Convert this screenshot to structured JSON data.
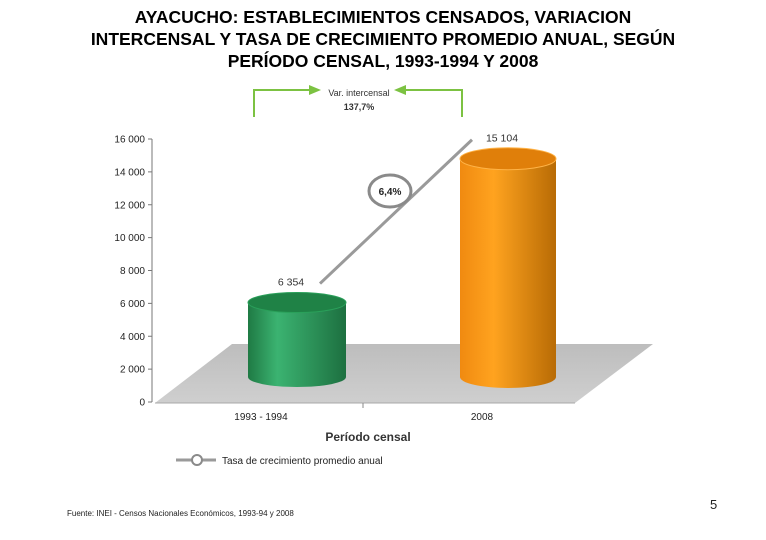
{
  "title": {
    "line1": "AYACUCHO: ESTABLECIMIENTOS CENSADOS, VARIACION",
    "line2": "INTERCENSAL Y TASA DE CRECIMIENTO PROMEDIO ANUAL, SEGÚN",
    "line3": "PERÍODO CENSAL, 1993-1994 Y 2008"
  },
  "chart_data": {
    "type": "bar",
    "categories": [
      "1993 - 1994",
      "2008"
    ],
    "values": [
      6354,
      15104
    ],
    "value_labels": [
      "6 354",
      "15 104"
    ],
    "xlabel": "Período censal",
    "ylabel": "",
    "ylim": [
      0,
      16000
    ],
    "yticks": [
      0,
      2000,
      4000,
      6000,
      8000,
      10000,
      12000,
      14000,
      16000
    ],
    "ytick_labels": [
      "0",
      "2 000",
      "4 000",
      "6 000",
      "8 000",
      "10 000",
      "12 000",
      "14 000",
      "16 000"
    ],
    "bar_colors": [
      "#2e9e5e",
      "#f7931e"
    ],
    "growth_rate_label": "6,4%",
    "variation_label_line1": "Var. intercensal",
    "variation_label_line2": "137,7%",
    "legend_label": "Tasa de crecimiento promedio anual",
    "legend_position": "bottom",
    "grid": false
  },
  "footer": {
    "source": "Fuente: INEI - Censos Nacionales Económicos, 1993-94 y 2008",
    "page_number": "5"
  }
}
